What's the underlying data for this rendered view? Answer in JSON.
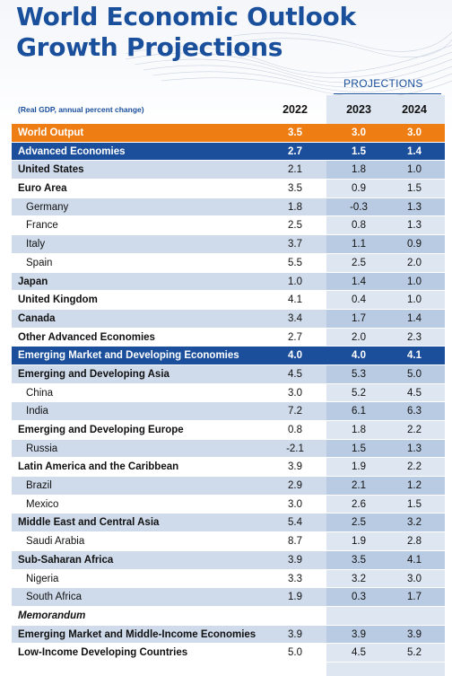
{
  "title_line1": "World Economic Outlook",
  "title_line2": "Growth Projections",
  "projections_label": "PROJECTIONS",
  "subtitle": "(Real GDP, annual percent change)",
  "columns": [
    "2022",
    "2023",
    "2024"
  ],
  "colors": {
    "title_blue": "#1a4f9c",
    "orange": "#ee7d13",
    "section_blue": "#1b4f9c",
    "shade": "#cfdbeb",
    "projection_bg": "#dde6f1"
  },
  "rows": [
    {
      "label": "World Output",
      "v": [
        "3.5",
        "3.0",
        "3.0"
      ],
      "style": "orange"
    },
    {
      "label": "Advanced Economies",
      "v": [
        "2.7",
        "1.5",
        "1.4"
      ],
      "style": "blue"
    },
    {
      "label": "United States",
      "v": [
        "2.1",
        "1.8",
        "1.0"
      ],
      "style": "shade"
    },
    {
      "label": "Euro Area",
      "v": [
        "3.5",
        "0.9",
        "1.5"
      ],
      "style": "plain"
    },
    {
      "label": "Germany",
      "v": [
        "1.8",
        "-0.3",
        "1.3"
      ],
      "style": "shade",
      "sub": true
    },
    {
      "label": "France",
      "v": [
        "2.5",
        "0.8",
        "1.3"
      ],
      "style": "plain",
      "sub": true
    },
    {
      "label": "Italy",
      "v": [
        "3.7",
        "1.1",
        "0.9"
      ],
      "style": "shade",
      "sub": true
    },
    {
      "label": "Spain",
      "v": [
        "5.5",
        "2.5",
        "2.0"
      ],
      "style": "plain",
      "sub": true
    },
    {
      "label": "Japan",
      "v": [
        "1.0",
        "1.4",
        "1.0"
      ],
      "style": "shade"
    },
    {
      "label": "United Kingdom",
      "v": [
        "4.1",
        "0.4",
        "1.0"
      ],
      "style": "plain"
    },
    {
      "label": "Canada",
      "v": [
        "3.4",
        "1.7",
        "1.4"
      ],
      "style": "shade"
    },
    {
      "label": "Other Advanced Economies",
      "v": [
        "2.7",
        "2.0",
        "2.3"
      ],
      "style": "plain"
    },
    {
      "label": "Emerging Market and Developing Economies",
      "v": [
        "4.0",
        "4.0",
        "4.1"
      ],
      "style": "blue"
    },
    {
      "label": "Emerging and Developing Asia",
      "v": [
        "4.5",
        "5.3",
        "5.0"
      ],
      "style": "shade"
    },
    {
      "label": "China",
      "v": [
        "3.0",
        "5.2",
        "4.5"
      ],
      "style": "plain",
      "sub": true
    },
    {
      "label": "India",
      "v": [
        "7.2",
        "6.1",
        "6.3"
      ],
      "style": "shade",
      "sub": true
    },
    {
      "label": "Emerging and Developing Europe",
      "v": [
        "0.8",
        "1.8",
        "2.2"
      ],
      "style": "plain"
    },
    {
      "label": "Russia",
      "v": [
        "-2.1",
        "1.5",
        "1.3"
      ],
      "style": "shade",
      "sub": true
    },
    {
      "label": "Latin America and the Caribbean",
      "v": [
        "3.9",
        "1.9",
        "2.2"
      ],
      "style": "plain"
    },
    {
      "label": "Brazil",
      "v": [
        "2.9",
        "2.1",
        "1.2"
      ],
      "style": "shade",
      "sub": true
    },
    {
      "label": "Mexico",
      "v": [
        "3.0",
        "2.6",
        "1.5"
      ],
      "style": "plain",
      "sub": true
    },
    {
      "label": "Middle East and Central Asia",
      "v": [
        "5.4",
        "2.5",
        "3.2"
      ],
      "style": "shade"
    },
    {
      "label": "Saudi Arabia",
      "v": [
        "8.7",
        "1.9",
        "2.8"
      ],
      "style": "plain",
      "sub": true
    },
    {
      "label": "Sub-Saharan Africa",
      "v": [
        "3.9",
        "3.5",
        "4.1"
      ],
      "style": "shade"
    },
    {
      "label": "Nigeria",
      "v": [
        "3.3",
        "3.2",
        "3.0"
      ],
      "style": "plain",
      "sub": true
    },
    {
      "label": "South Africa",
      "v": [
        "1.9",
        "0.3",
        "1.7"
      ],
      "style": "shade",
      "sub": true
    },
    {
      "label": "Memorandum",
      "v": [
        "",
        "",
        ""
      ],
      "style": "italic"
    },
    {
      "label": "Emerging Market and Middle-Income Economies",
      "v": [
        "3.9",
        "3.9",
        "3.9"
      ],
      "style": "shade"
    },
    {
      "label": "Low-Income Developing Countries",
      "v": [
        "5.0",
        "4.5",
        "5.2"
      ],
      "style": "plain"
    }
  ]
}
